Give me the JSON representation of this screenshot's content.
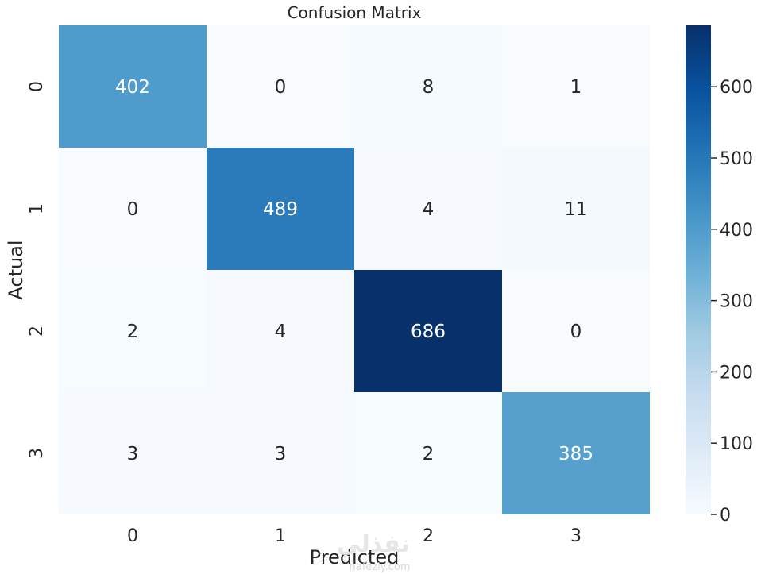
{
  "chart_data": {
    "type": "heatmap",
    "title": "Confusion Matrix",
    "xlabel": "Predicted",
    "ylabel": "Actual",
    "x_categories": [
      "0",
      "1",
      "2",
      "3"
    ],
    "y_categories": [
      "0",
      "1",
      "2",
      "3"
    ],
    "values": [
      [
        402,
        0,
        8,
        1
      ],
      [
        0,
        489,
        4,
        11
      ],
      [
        2,
        4,
        686,
        0
      ],
      [
        3,
        3,
        2,
        385
      ]
    ],
    "colorbar": {
      "min": 0,
      "max": 686,
      "ticks": [
        0,
        100,
        200,
        300,
        400,
        500,
        600
      ],
      "colormap": "Blues"
    },
    "watermark": {
      "latin": "nafezly.com",
      "arabic": "نفذلي"
    }
  }
}
